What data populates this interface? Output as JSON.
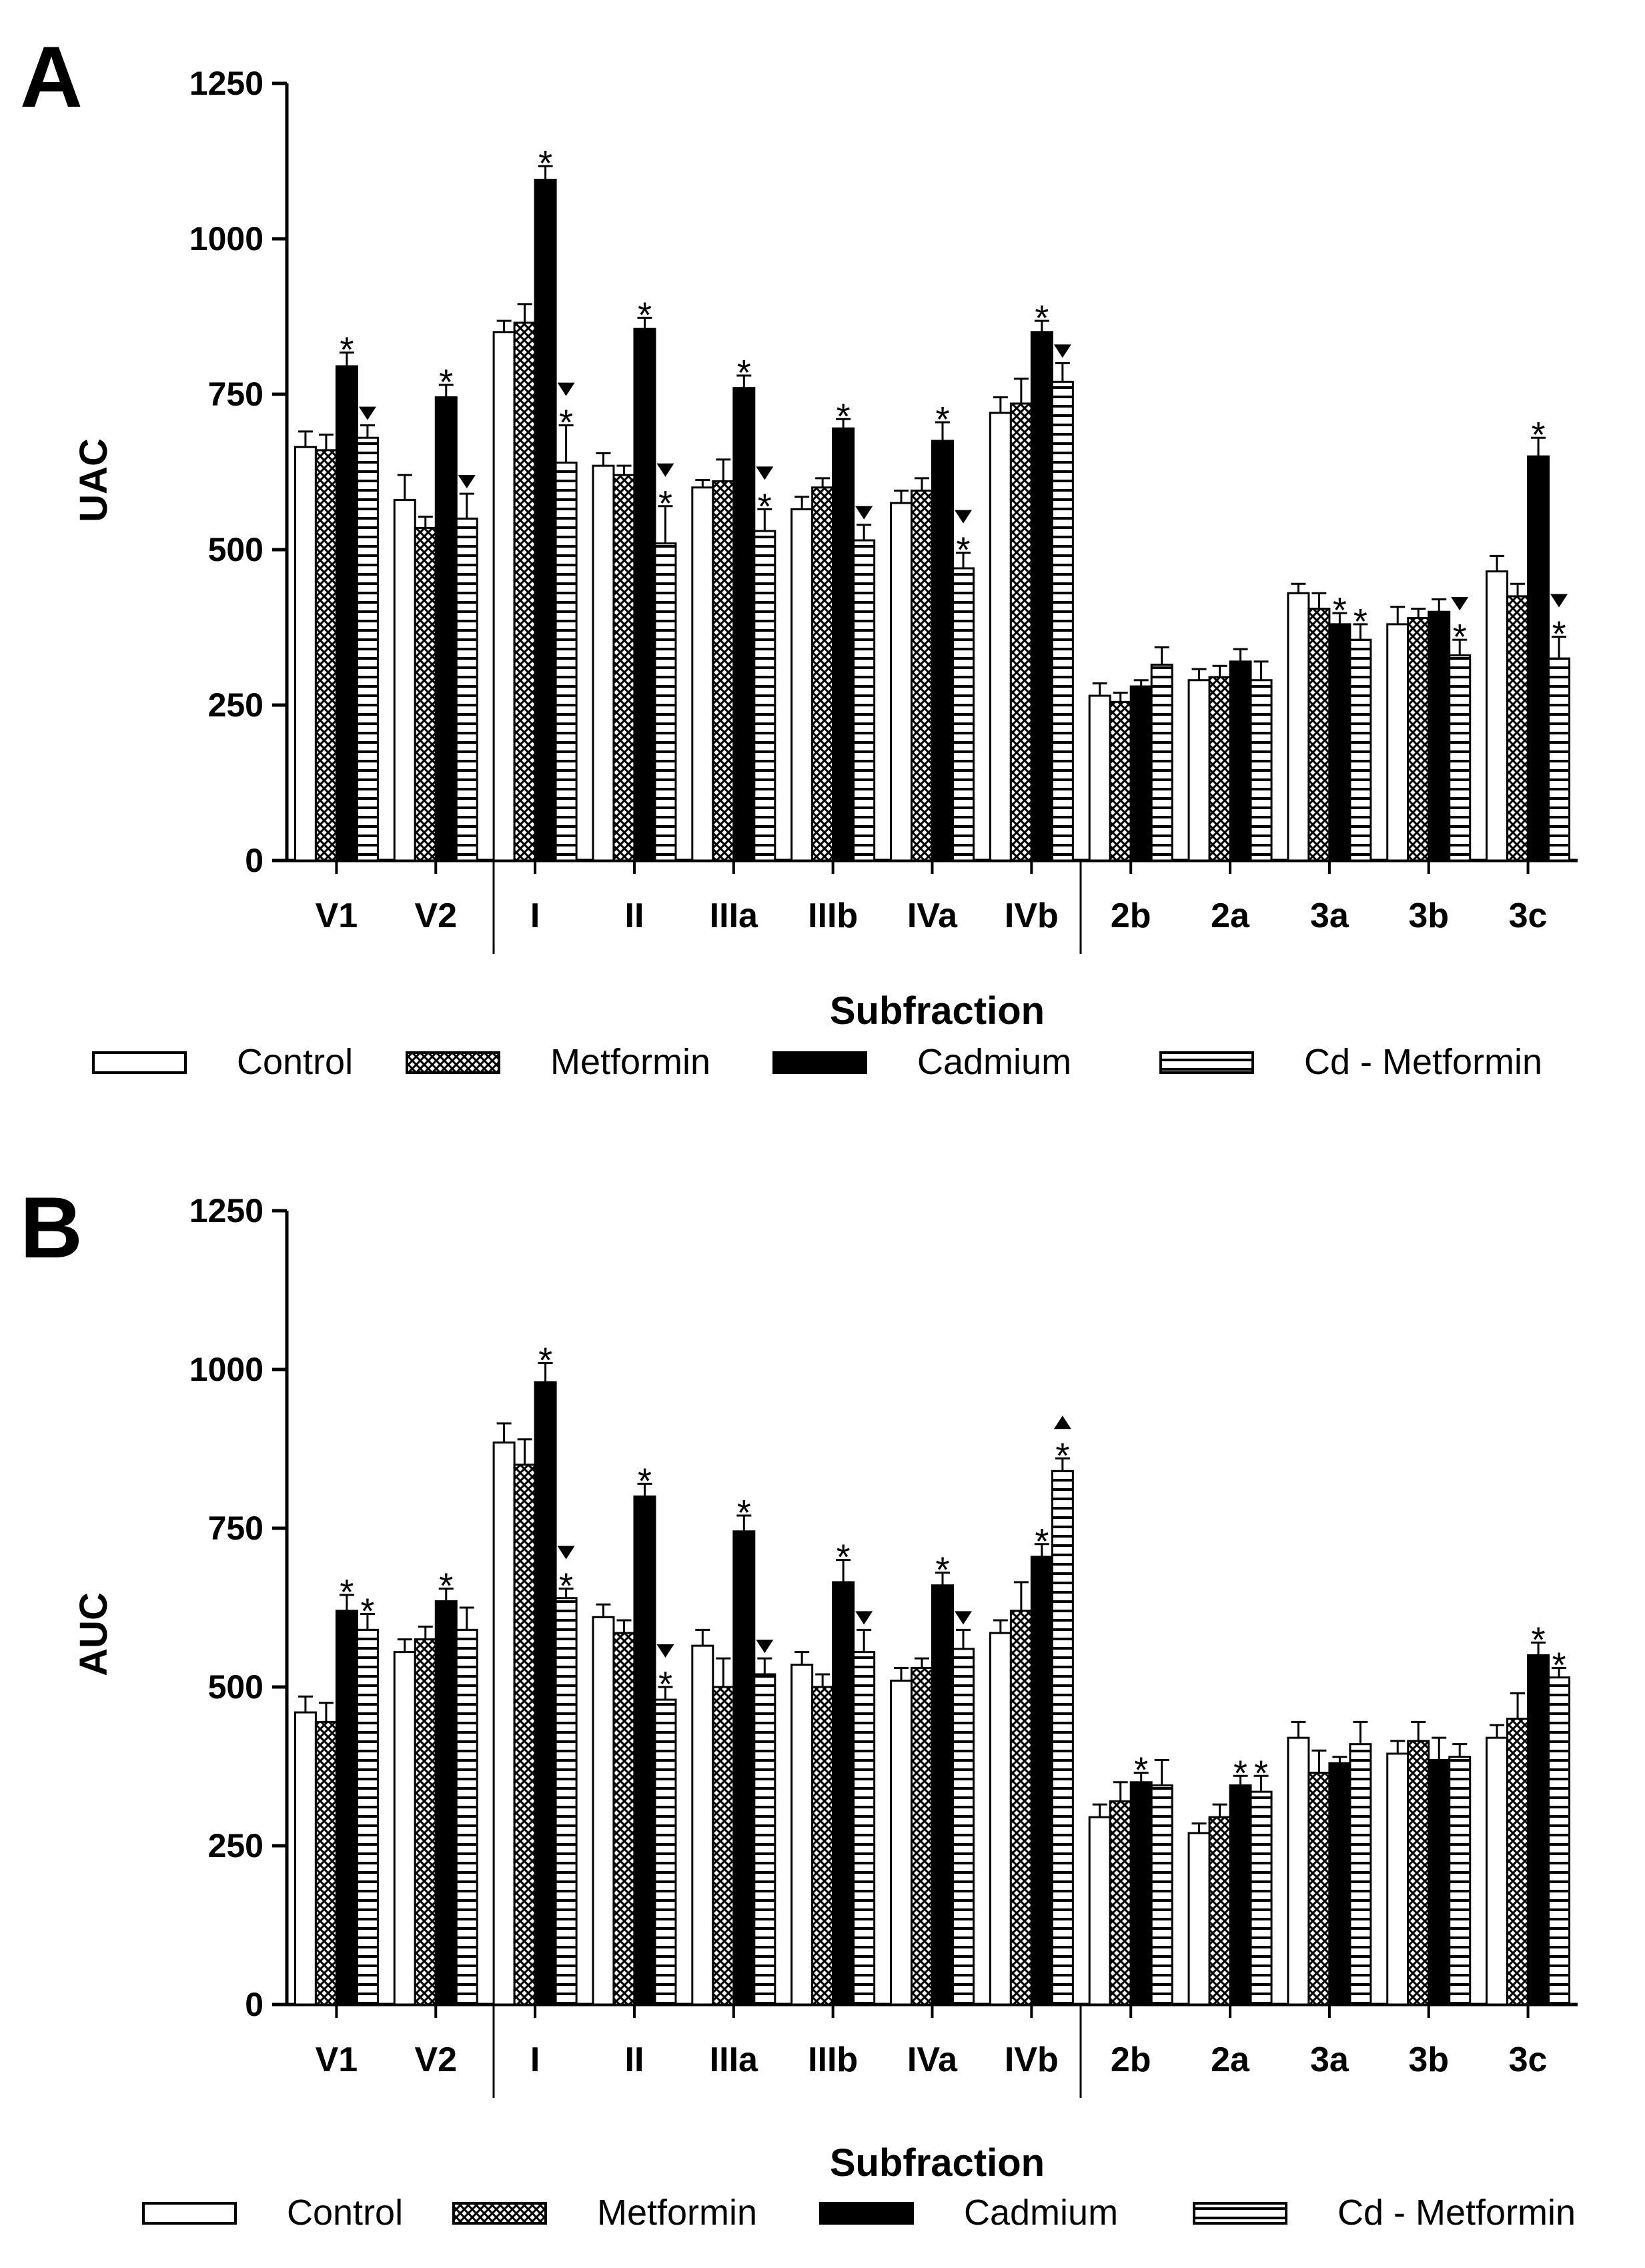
{
  "chart_data": [
    {
      "type": "bar",
      "panel": "A",
      "title": "",
      "xlabel": "Subfraction",
      "ylabel": "UAC",
      "ylim": [
        0,
        1250
      ],
      "yticks": [
        "0",
        "250",
        "500",
        "750",
        "1000",
        "1250"
      ],
      "categories": [
        "V1",
        "V2",
        "I",
        "II",
        "IIIa",
        "IIIb",
        "IVa",
        "IVb",
        "2b",
        "2a",
        "3a",
        "3b",
        "3c"
      ],
      "series": [
        {
          "name": "Control",
          "pattern": "white",
          "values": [
            665,
            580,
            850,
            635,
            600,
            565,
            575,
            720,
            265,
            290,
            430,
            380,
            465
          ],
          "errors": [
            25,
            40,
            18,
            20,
            12,
            20,
            20,
            25,
            20,
            18,
            15,
            28,
            25
          ]
        },
        {
          "name": "Metformin",
          "pattern": "crosshatch",
          "values": [
            660,
            535,
            865,
            620,
            610,
            600,
            595,
            735,
            255,
            295,
            405,
            390,
            425
          ],
          "errors": [
            25,
            18,
            30,
            15,
            35,
            15,
            20,
            40,
            15,
            18,
            25,
            15,
            20
          ]
        },
        {
          "name": "Cadmium",
          "pattern": "black",
          "values": [
            795,
            745,
            1095,
            855,
            760,
            695,
            675,
            850,
            280,
            320,
            380,
            400,
            650
          ],
          "errors": [
            22,
            20,
            22,
            18,
            20,
            15,
            30,
            18,
            10,
            20,
            18,
            20,
            30
          ]
        },
        {
          "name": "Cd - Metformin",
          "pattern": "hstripe",
          "values": [
            680,
            550,
            640,
            510,
            530,
            515,
            470,
            770,
            315,
            290,
            355,
            330,
            325
          ],
          "errors": [
            20,
            40,
            60,
            60,
            35,
            25,
            25,
            30,
            28,
            30,
            25,
            25,
            35
          ]
        }
      ],
      "annotations": [
        {
          "category": "V1",
          "series": "Cadmium",
          "marks": "*"
        },
        {
          "category": "V1",
          "series": "Cd - Metformin",
          "marks": "▼"
        },
        {
          "category": "V2",
          "series": "Cadmium",
          "marks": "*"
        },
        {
          "category": "V2",
          "series": "Cd - Metformin",
          "marks": "▼"
        },
        {
          "category": "I",
          "series": "Cadmium",
          "marks": "*"
        },
        {
          "category": "I",
          "series": "Cd - Metformin",
          "marks": "▼*"
        },
        {
          "category": "II",
          "series": "Cadmium",
          "marks": "*"
        },
        {
          "category": "II",
          "series": "Cd - Metformin",
          "marks": "▼*"
        },
        {
          "category": "IIIa",
          "series": "Cadmium",
          "marks": "*"
        },
        {
          "category": "IIIa",
          "series": "Cd - Metformin",
          "marks": "▼*"
        },
        {
          "category": "IIIb",
          "series": "Cadmium",
          "marks": "*"
        },
        {
          "category": "IIIb",
          "series": "Cd - Metformin",
          "marks": "▼"
        },
        {
          "category": "IVa",
          "series": "Cadmium",
          "marks": "*"
        },
        {
          "category": "IVa",
          "series": "Cd - Metformin",
          "marks": "▼*"
        },
        {
          "category": "IVb",
          "series": "Cadmium",
          "marks": "*"
        },
        {
          "category": "IVb",
          "series": "Cd - Metformin",
          "marks": "▼"
        },
        {
          "category": "3a",
          "series": "Cadmium",
          "marks": "*"
        },
        {
          "category": "3a",
          "series": "Cd - Metformin",
          "marks": "*"
        },
        {
          "category": "3b",
          "series": "Cd - Metformin",
          "marks": "▼*"
        },
        {
          "category": "3c",
          "series": "Cadmium",
          "marks": "*"
        },
        {
          "category": "3c",
          "series": "Cd - Metformin",
          "marks": "▼*"
        }
      ]
    },
    {
      "type": "bar",
      "panel": "B",
      "title": "",
      "xlabel": "Subfraction",
      "ylabel": "AUC",
      "ylim": [
        0,
        1250
      ],
      "yticks": [
        "0",
        "250",
        "500",
        "750",
        "1000",
        "1250"
      ],
      "categories": [
        "V1",
        "V2",
        "I",
        "II",
        "IIIa",
        "IIIb",
        "IVa",
        "IVb",
        "2b",
        "2a",
        "3a",
        "3b",
        "3c"
      ],
      "series": [
        {
          "name": "Control",
          "pattern": "white",
          "values": [
            460,
            555,
            885,
            610,
            565,
            535,
            510,
            585,
            295,
            270,
            420,
            395,
            420
          ],
          "errors": [
            25,
            20,
            30,
            20,
            25,
            20,
            20,
            20,
            20,
            15,
            25,
            20,
            20
          ]
        },
        {
          "name": "Metformin",
          "pattern": "crosshatch",
          "values": [
            445,
            575,
            850,
            585,
            500,
            500,
            530,
            620,
            320,
            295,
            365,
            415,
            450
          ],
          "errors": [
            30,
            20,
            40,
            20,
            45,
            20,
            15,
            45,
            30,
            20,
            35,
            30,
            40
          ]
        },
        {
          "name": "Cadmium",
          "pattern": "black",
          "values": [
            620,
            635,
            980,
            800,
            745,
            665,
            660,
            705,
            350,
            345,
            380,
            385,
            550
          ],
          "errors": [
            25,
            20,
            30,
            20,
            25,
            35,
            20,
            20,
            15,
            15,
            10,
            35,
            20
          ]
        },
        {
          "name": "Cd - Metformin",
          "pattern": "hstripe",
          "values": [
            590,
            590,
            640,
            480,
            520,
            555,
            560,
            840,
            345,
            335,
            410,
            390,
            515
          ],
          "errors": [
            25,
            35,
            15,
            20,
            25,
            35,
            30,
            20,
            40,
            25,
            35,
            20,
            15
          ]
        }
      ],
      "annotations": [
        {
          "category": "V1",
          "series": "Cadmium",
          "marks": "*"
        },
        {
          "category": "V1",
          "series": "Cd - Metformin",
          "marks": "*"
        },
        {
          "category": "V2",
          "series": "Cadmium",
          "marks": "*"
        },
        {
          "category": "I",
          "series": "Cadmium",
          "marks": "*"
        },
        {
          "category": "I",
          "series": "Cd - Metformin",
          "marks": "▼*"
        },
        {
          "category": "II",
          "series": "Cadmium",
          "marks": "*"
        },
        {
          "category": "II",
          "series": "Cd - Metformin",
          "marks": "▼*"
        },
        {
          "category": "IIIa",
          "series": "Cadmium",
          "marks": "*"
        },
        {
          "category": "IIIa",
          "series": "Cd - Metformin",
          "marks": "▼"
        },
        {
          "category": "IIIb",
          "series": "Cadmium",
          "marks": "*"
        },
        {
          "category": "IIIb",
          "series": "Cd - Metformin",
          "marks": "▼"
        },
        {
          "category": "IVa",
          "series": "Cadmium",
          "marks": "*"
        },
        {
          "category": "IVa",
          "series": "Cd - Metformin",
          "marks": "▼"
        },
        {
          "category": "IVb",
          "series": "Cadmium",
          "marks": "*"
        },
        {
          "category": "IVb",
          "series": "Cd - Metformin",
          "marks": "▲*"
        },
        {
          "category": "2b",
          "series": "Cadmium",
          "marks": "*"
        },
        {
          "category": "2a",
          "series": "Cadmium",
          "marks": "*"
        },
        {
          "category": "2a",
          "series": "Cd - Metformin",
          "marks": "*"
        },
        {
          "category": "3c",
          "series": "Cadmium",
          "marks": "*"
        },
        {
          "category": "3c",
          "series": "Cd - Metformin",
          "marks": "*"
        }
      ]
    }
  ]
}
